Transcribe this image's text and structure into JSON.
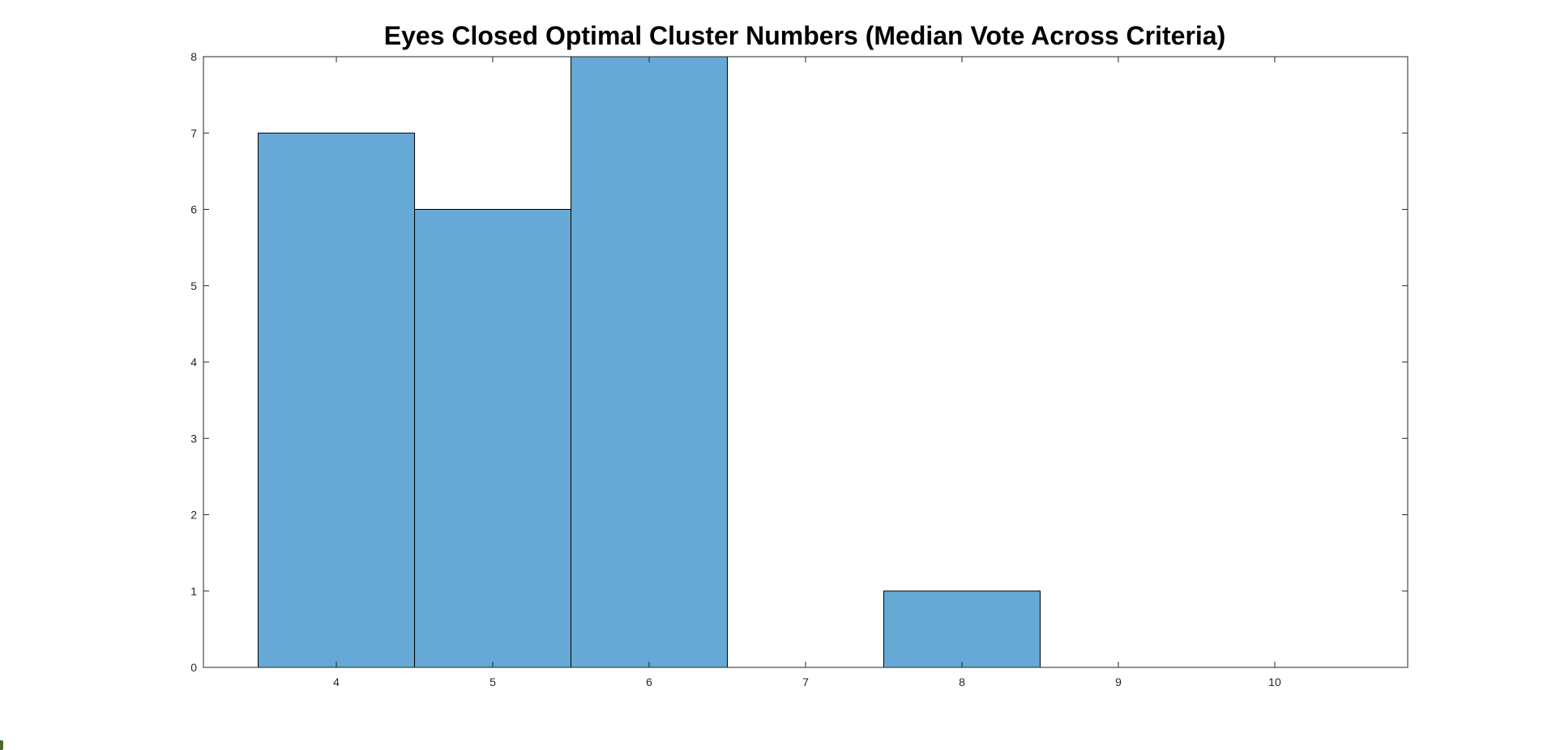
{
  "chart_data": {
    "type": "bar",
    "title": "Eyes Closed Optimal Cluster Numbers (Median Vote Across Criteria)",
    "xlabel": "",
    "ylabel": "",
    "categories": [
      "4",
      "5",
      "6",
      "7",
      "8",
      "9",
      "10"
    ],
    "x": [
      4,
      5,
      6,
      7,
      8,
      9,
      10
    ],
    "values": [
      7,
      6,
      8,
      0,
      1,
      0,
      0
    ],
    "xlim": [
      3.15,
      10.85
    ],
    "ylim": [
      0,
      8
    ],
    "x_ticks": [
      4,
      5,
      6,
      7,
      8,
      9,
      10
    ],
    "y_ticks": [
      0,
      1,
      2,
      3,
      4,
      5,
      6,
      7,
      8
    ],
    "bar_width": 1,
    "grid": false,
    "colors": {
      "bar_fill": "#66a9d6",
      "bar_edge": "#000000",
      "axes": "#262626"
    }
  }
}
